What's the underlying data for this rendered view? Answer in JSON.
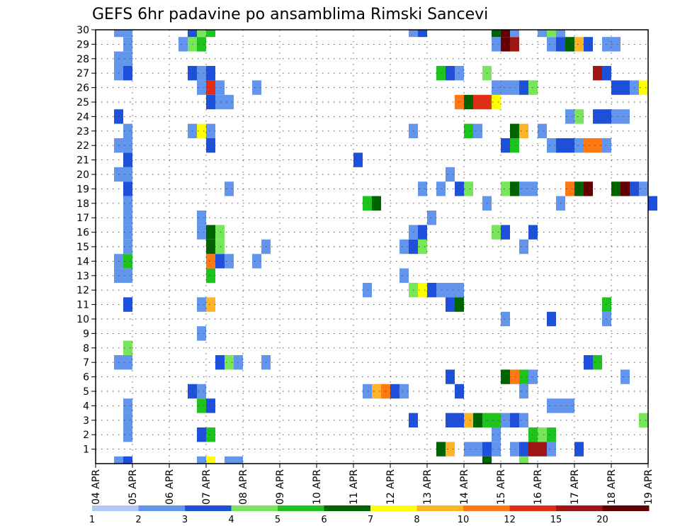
{
  "chart_data": {
    "type": "heatmap",
    "title": "GEFS 6hr padavine po ansamblima Rimski Sancevi",
    "xlabel": "",
    "ylabel": "",
    "x_tick_labels": [
      "04 APR",
      "05 APR",
      "06 APR",
      "07 APR",
      "08 APR",
      "09 APR",
      "10 APR",
      "11 APR",
      "12 APR",
      "13 APR",
      "14 APR",
      "15 APR",
      "16 APR",
      "17 APR",
      "18 APR",
      "19 APR"
    ],
    "x_range_days": [
      0,
      15
    ],
    "y_tick_labels": [
      "1",
      "2",
      "3",
      "4",
      "5",
      "6",
      "7",
      "8",
      "9",
      "10",
      "11",
      "12",
      "13",
      "14",
      "15",
      "16",
      "17",
      "18",
      "19",
      "20",
      "21",
      "22",
      "23",
      "24",
      "25",
      "26",
      "27",
      "28",
      "29",
      "30"
    ],
    "y_range": [
      0,
      30
    ],
    "grid": true,
    "colorbar": {
      "labels": [
        "1",
        "2",
        "3",
        "4",
        "5",
        "6",
        "7",
        "8",
        "10",
        "12",
        "15",
        "20"
      ],
      "colors": [
        "#b4c8f5",
        "#6495ed",
        "#1e50dc",
        "#78e65a",
        "#1ec31e",
        "#006400",
        "#ffff00",
        "#ffb428",
        "#ff7814",
        "#e12d14",
        "#a01414",
        "#640000"
      ]
    },
    "cell_days": 0.25,
    "cells": [
      [
        0,
        0.5,
        1
      ],
      [
        0,
        0.75,
        2
      ],
      [
        0,
        2.75,
        1
      ],
      [
        0,
        3.0,
        6
      ],
      [
        0,
        3.5,
        1
      ],
      [
        0,
        3.75,
        1
      ],
      [
        0,
        10.5,
        5
      ],
      [
        0,
        11.5,
        3
      ],
      [
        1,
        9.25,
        5
      ],
      [
        1,
        9.5,
        7
      ],
      [
        1,
        10.0,
        1
      ],
      [
        1,
        10.25,
        1
      ],
      [
        1,
        10.5,
        2
      ],
      [
        1,
        10.75,
        1
      ],
      [
        1,
        11.25,
        1
      ],
      [
        1,
        11.5,
        2
      ],
      [
        1,
        11.75,
        10
      ],
      [
        1,
        12.0,
        10
      ],
      [
        1,
        12.25,
        1
      ],
      [
        1,
        13.0,
        2
      ],
      [
        2,
        0.75,
        1
      ],
      [
        2,
        2.75,
        2
      ],
      [
        2,
        3.0,
        4
      ],
      [
        2,
        10.75,
        1
      ],
      [
        2,
        11.75,
        4
      ],
      [
        2,
        12.0,
        3
      ],
      [
        2,
        12.25,
        4
      ],
      [
        3,
        0.75,
        1
      ],
      [
        3,
        8.5,
        2
      ],
      [
        3,
        9.5,
        2
      ],
      [
        3,
        9.75,
        2
      ],
      [
        3,
        10.0,
        7
      ],
      [
        3,
        10.25,
        5
      ],
      [
        3,
        10.5,
        4
      ],
      [
        3,
        10.75,
        4
      ],
      [
        3,
        11.0,
        1
      ],
      [
        3,
        11.25,
        2
      ],
      [
        3,
        11.5,
        1
      ],
      [
        3,
        14.75,
        3
      ],
      [
        4,
        0.75,
        1
      ],
      [
        4,
        2.75,
        4
      ],
      [
        4,
        3.0,
        2
      ],
      [
        4,
        12.25,
        1
      ],
      [
        4,
        12.5,
        1
      ],
      [
        4,
        12.75,
        1
      ],
      [
        5,
        2.5,
        2
      ],
      [
        5,
        2.75,
        1
      ],
      [
        5,
        7.25,
        1
      ],
      [
        5,
        7.5,
        7
      ],
      [
        5,
        7.75,
        8
      ],
      [
        5,
        8.0,
        2
      ],
      [
        5,
        8.25,
        1
      ],
      [
        5,
        9.75,
        2
      ],
      [
        5,
        11.5,
        1
      ],
      [
        6,
        9.5,
        2
      ],
      [
        6,
        11.0,
        5
      ],
      [
        6,
        11.25,
        8
      ],
      [
        6,
        11.5,
        4
      ],
      [
        6,
        11.75,
        1
      ],
      [
        6,
        14.25,
        1
      ],
      [
        7,
        0.5,
        1
      ],
      [
        7,
        0.75,
        1
      ],
      [
        7,
        3.25,
        2
      ],
      [
        7,
        3.5,
        3
      ],
      [
        7,
        3.75,
        1
      ],
      [
        7,
        4.5,
        1
      ],
      [
        7,
        13.25,
        2
      ],
      [
        7,
        13.5,
        4
      ],
      [
        8,
        0.75,
        3
      ],
      [
        9,
        2.75,
        1
      ],
      [
        10,
        11.0,
        1
      ],
      [
        10,
        12.25,
        2
      ],
      [
        10,
        13.75,
        1
      ],
      [
        11,
        2.75,
        1
      ],
      [
        11,
        3.0,
        7
      ],
      [
        11,
        0.75,
        2
      ],
      [
        11,
        9.5,
        2
      ],
      [
        11,
        9.75,
        5
      ],
      [
        11,
        13.75,
        4
      ],
      [
        12,
        7.25,
        1
      ],
      [
        12,
        8.5,
        3
      ],
      [
        12,
        8.75,
        6
      ],
      [
        12,
        9.0,
        2
      ],
      [
        12,
        9.25,
        1
      ],
      [
        12,
        9.5,
        1
      ],
      [
        12,
        9.75,
        1
      ],
      [
        13,
        0.5,
        1
      ],
      [
        13,
        0.75,
        1
      ],
      [
        13,
        3.0,
        4
      ],
      [
        13,
        8.25,
        1
      ],
      [
        14,
        0.5,
        1
      ],
      [
        14,
        0.75,
        4
      ],
      [
        14,
        3.0,
        8
      ],
      [
        14,
        3.25,
        2
      ],
      [
        14,
        3.5,
        1
      ],
      [
        14,
        4.25,
        1
      ],
      [
        15,
        0.75,
        1
      ],
      [
        15,
        3.0,
        5
      ],
      [
        15,
        3.25,
        3
      ],
      [
        15,
        4.5,
        1
      ],
      [
        15,
        8.25,
        1
      ],
      [
        15,
        8.5,
        2
      ],
      [
        15,
        8.75,
        3
      ],
      [
        15,
        11.5,
        1
      ],
      [
        16,
        0.75,
        1
      ],
      [
        16,
        2.75,
        1
      ],
      [
        16,
        3.0,
        5
      ],
      [
        16,
        3.25,
        3
      ],
      [
        16,
        8.5,
        1
      ],
      [
        16,
        8.75,
        2
      ],
      [
        16,
        10.75,
        3
      ],
      [
        16,
        11.0,
        2
      ],
      [
        16,
        11.75,
        2
      ],
      [
        17,
        0.75,
        1
      ],
      [
        17,
        2.75,
        1
      ],
      [
        17,
        9.0,
        1
      ],
      [
        18,
        0.75,
        1
      ],
      [
        18,
        7.25,
        4
      ],
      [
        18,
        7.5,
        5
      ],
      [
        18,
        10.5,
        1
      ],
      [
        18,
        15.0,
        2
      ],
      [
        18,
        12.5,
        1
      ],
      [
        19,
        0.75,
        2
      ],
      [
        19,
        3.5,
        1
      ],
      [
        19,
        8.75,
        1
      ],
      [
        19,
        9.25,
        1
      ],
      [
        19,
        9.75,
        2
      ],
      [
        19,
        10.0,
        3
      ],
      [
        19,
        11.0,
        3
      ],
      [
        19,
        11.25,
        5
      ],
      [
        19,
        11.5,
        1
      ],
      [
        19,
        11.75,
        1
      ],
      [
        19,
        12.75,
        8
      ],
      [
        19,
        13.0,
        5
      ],
      [
        19,
        13.25,
        11
      ],
      [
        19,
        14.0,
        5
      ],
      [
        19,
        14.25,
        11
      ],
      [
        19,
        14.5,
        2
      ],
      [
        19,
        14.75,
        1
      ],
      [
        20,
        0.5,
        1
      ],
      [
        20,
        0.75,
        1
      ],
      [
        20,
        9.5,
        1
      ],
      [
        21,
        0.75,
        2
      ],
      [
        21,
        7.0,
        2
      ],
      [
        22,
        0.5,
        1
      ],
      [
        22,
        0.75,
        1
      ],
      [
        22,
        3.0,
        2
      ],
      [
        22,
        11.0,
        2
      ],
      [
        22,
        11.25,
        4
      ],
      [
        22,
        12.25,
        1
      ],
      [
        22,
        12.5,
        2
      ],
      [
        22,
        12.75,
        2
      ],
      [
        22,
        13.0,
        1
      ],
      [
        22,
        13.25,
        8
      ],
      [
        22,
        13.5,
        8
      ],
      [
        22,
        13.75,
        1
      ],
      [
        23,
        0.75,
        1
      ],
      [
        23,
        2.5,
        1
      ],
      [
        23,
        2.75,
        6
      ],
      [
        23,
        3.0,
        1
      ],
      [
        23,
        8.5,
        1
      ],
      [
        23,
        10.0,
        4
      ],
      [
        23,
        10.25,
        1
      ],
      [
        23,
        11.25,
        5
      ],
      [
        23,
        11.5,
        7
      ],
      [
        23,
        12.0,
        1
      ],
      [
        24,
        0.5,
        2
      ],
      [
        24,
        12.75,
        1
      ],
      [
        24,
        13.0,
        3
      ],
      [
        24,
        13.5,
        2
      ],
      [
        24,
        13.75,
        2
      ],
      [
        24,
        14.0,
        1
      ],
      [
        24,
        14.25,
        1
      ],
      [
        25,
        3.0,
        2
      ],
      [
        25,
        3.25,
        1
      ],
      [
        25,
        3.5,
        1
      ],
      [
        25,
        9.75,
        8
      ],
      [
        25,
        10.0,
        5
      ],
      [
        25,
        10.25,
        9
      ],
      [
        25,
        10.5,
        9
      ],
      [
        25,
        10.75,
        6
      ],
      [
        26,
        2.75,
        1
      ],
      [
        26,
        3.0,
        9
      ],
      [
        26,
        3.25,
        1
      ],
      [
        26,
        4.25,
        1
      ],
      [
        26,
        10.75,
        1
      ],
      [
        26,
        11.0,
        1
      ],
      [
        26,
        11.25,
        1
      ],
      [
        26,
        11.5,
        2
      ],
      [
        26,
        11.75,
        3
      ],
      [
        26,
        14.0,
        2
      ],
      [
        26,
        14.25,
        2
      ],
      [
        26,
        14.5,
        1
      ],
      [
        26,
        14.75,
        6
      ],
      [
        27,
        0.5,
        1
      ],
      [
        27,
        0.75,
        2
      ],
      [
        27,
        2.5,
        2
      ],
      [
        27,
        2.75,
        1
      ],
      [
        27,
        3.0,
        2
      ],
      [
        27,
        9.25,
        4
      ],
      [
        27,
        9.5,
        2
      ],
      [
        27,
        9.75,
        1
      ],
      [
        27,
        10.5,
        3
      ],
      [
        27,
        13.5,
        10
      ],
      [
        27,
        13.75,
        2
      ],
      [
        28,
        0.5,
        1
      ],
      [
        28,
        0.75,
        1
      ],
      [
        29,
        0.75,
        1
      ],
      [
        29,
        2.25,
        1
      ],
      [
        29,
        2.5,
        3
      ],
      [
        29,
        2.75,
        4
      ],
      [
        29,
        10.75,
        1
      ],
      [
        29,
        11.0,
        11
      ],
      [
        29,
        11.25,
        10
      ],
      [
        29,
        12.25,
        1
      ],
      [
        29,
        12.5,
        2
      ],
      [
        29,
        12.75,
        5
      ],
      [
        29,
        13.0,
        7
      ],
      [
        29,
        13.25,
        2
      ],
      [
        29,
        13.75,
        1
      ],
      [
        29,
        14.0,
        1
      ],
      [
        30,
        0.5,
        1
      ],
      [
        30,
        0.75,
        1
      ],
      [
        30,
        2.5,
        2
      ],
      [
        30,
        2.75,
        3
      ],
      [
        30,
        3.0,
        4
      ],
      [
        30,
        8.5,
        1
      ],
      [
        30,
        8.75,
        2
      ],
      [
        30,
        10.75,
        5
      ],
      [
        30,
        11.0,
        11
      ],
      [
        30,
        11.25,
        1
      ],
      [
        30,
        12.0,
        1
      ],
      [
        30,
        12.25,
        3
      ],
      [
        30,
        12.5,
        1
      ]
    ]
  }
}
